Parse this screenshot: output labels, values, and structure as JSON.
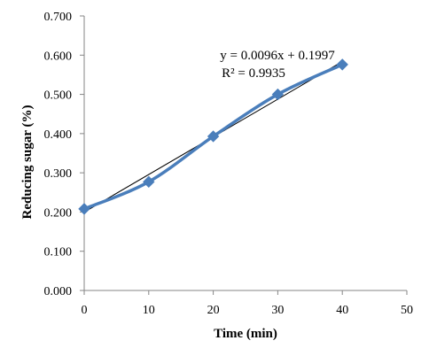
{
  "chart_data": {
    "type": "scatter",
    "xlabel": "Time (min)",
    "ylabel": "Reducing sugar (%)",
    "xlim": [
      0,
      50
    ],
    "ylim": [
      0,
      0.7
    ],
    "x_ticks": [
      "0",
      "10",
      "20",
      "30",
      "40",
      "50"
    ],
    "y_ticks": [
      "0.000",
      "0.100",
      "0.200",
      "0.300",
      "0.400",
      "0.500",
      "0.600",
      "0.700"
    ],
    "grid": false,
    "series": [
      {
        "x": [
          0,
          10,
          20,
          30,
          40
        ],
        "y": [
          0.208,
          0.277,
          0.393,
          0.5,
          0.576
        ],
        "color": "#4a7ebb",
        "marker": "diamond",
        "line": "smooth"
      }
    ],
    "trendline": {
      "slope": 0.0096,
      "intercept": 0.1997,
      "x_range": [
        0,
        40
      ],
      "color": "#000000"
    },
    "annotations": [
      "y = 0.0096x + 0.1997",
      "R² = 0.9935"
    ]
  }
}
